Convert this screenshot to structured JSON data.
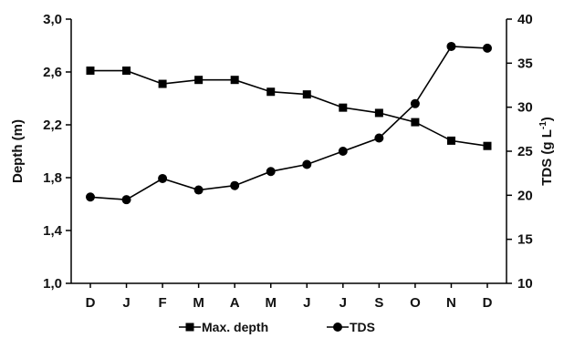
{
  "chart_data": {
    "type": "line",
    "categories": [
      "D",
      "J",
      "F",
      "M",
      "A",
      "M",
      "J",
      "J",
      "S",
      "O",
      "N",
      "D"
    ],
    "series": [
      {
        "name": "Max. depth",
        "axis": "left",
        "marker": "square",
        "values": [
          2.61,
          2.61,
          2.51,
          2.54,
          2.54,
          2.45,
          2.43,
          2.33,
          2.29,
          2.22,
          2.08,
          2.04
        ]
      },
      {
        "name": "TDS",
        "axis": "right",
        "marker": "circle",
        "values": [
          19.8,
          19.5,
          21.9,
          20.6,
          21.1,
          22.7,
          23.5,
          25.0,
          26.5,
          30.4,
          36.9,
          36.7
        ]
      }
    ],
    "y_left": {
      "label": "Depth (m)",
      "lim": [
        1.0,
        3.0
      ],
      "ticks": [
        "1,0",
        "1,4",
        "1,8",
        "2,2",
        "2,6",
        "3,0"
      ]
    },
    "y_right": {
      "label": "TDS (g L-1)",
      "lim": [
        10,
        40
      ],
      "ticks": [
        "10",
        "15",
        "20",
        "25",
        "30",
        "35",
        "40"
      ]
    },
    "legend_position": "bottom",
    "grid": false,
    "colors": {
      "line": "#000000",
      "marker": "#000000"
    }
  }
}
